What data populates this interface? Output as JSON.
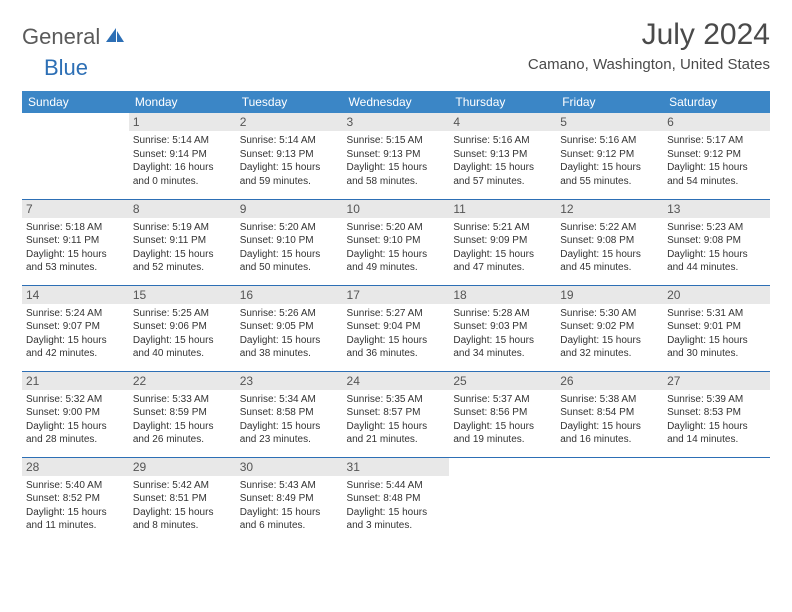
{
  "logo": {
    "part1": "General",
    "part2": "Blue"
  },
  "title": "July 2024",
  "location": "Camano, Washington, United States",
  "weekdays": [
    "Sunday",
    "Monday",
    "Tuesday",
    "Wednesday",
    "Thursday",
    "Friday",
    "Saturday"
  ],
  "colors": {
    "header_bg": "#3b86c6",
    "accent": "#2d6fb5",
    "daybar_bg": "#e8e8e8",
    "text": "#333333",
    "logo_gray": "#5a5a5a"
  },
  "weeks": [
    [
      null,
      {
        "n": "1",
        "sunrise": "Sunrise: 5:14 AM",
        "sunset": "Sunset: 9:14 PM",
        "day": "Daylight: 16 hours and 0 minutes."
      },
      {
        "n": "2",
        "sunrise": "Sunrise: 5:14 AM",
        "sunset": "Sunset: 9:13 PM",
        "day": "Daylight: 15 hours and 59 minutes."
      },
      {
        "n": "3",
        "sunrise": "Sunrise: 5:15 AM",
        "sunset": "Sunset: 9:13 PM",
        "day": "Daylight: 15 hours and 58 minutes."
      },
      {
        "n": "4",
        "sunrise": "Sunrise: 5:16 AM",
        "sunset": "Sunset: 9:13 PM",
        "day": "Daylight: 15 hours and 57 minutes."
      },
      {
        "n": "5",
        "sunrise": "Sunrise: 5:16 AM",
        "sunset": "Sunset: 9:12 PM",
        "day": "Daylight: 15 hours and 55 minutes."
      },
      {
        "n": "6",
        "sunrise": "Sunrise: 5:17 AM",
        "sunset": "Sunset: 9:12 PM",
        "day": "Daylight: 15 hours and 54 minutes."
      }
    ],
    [
      {
        "n": "7",
        "sunrise": "Sunrise: 5:18 AM",
        "sunset": "Sunset: 9:11 PM",
        "day": "Daylight: 15 hours and 53 minutes."
      },
      {
        "n": "8",
        "sunrise": "Sunrise: 5:19 AM",
        "sunset": "Sunset: 9:11 PM",
        "day": "Daylight: 15 hours and 52 minutes."
      },
      {
        "n": "9",
        "sunrise": "Sunrise: 5:20 AM",
        "sunset": "Sunset: 9:10 PM",
        "day": "Daylight: 15 hours and 50 minutes."
      },
      {
        "n": "10",
        "sunrise": "Sunrise: 5:20 AM",
        "sunset": "Sunset: 9:10 PM",
        "day": "Daylight: 15 hours and 49 minutes."
      },
      {
        "n": "11",
        "sunrise": "Sunrise: 5:21 AM",
        "sunset": "Sunset: 9:09 PM",
        "day": "Daylight: 15 hours and 47 minutes."
      },
      {
        "n": "12",
        "sunrise": "Sunrise: 5:22 AM",
        "sunset": "Sunset: 9:08 PM",
        "day": "Daylight: 15 hours and 45 minutes."
      },
      {
        "n": "13",
        "sunrise": "Sunrise: 5:23 AM",
        "sunset": "Sunset: 9:08 PM",
        "day": "Daylight: 15 hours and 44 minutes."
      }
    ],
    [
      {
        "n": "14",
        "sunrise": "Sunrise: 5:24 AM",
        "sunset": "Sunset: 9:07 PM",
        "day": "Daylight: 15 hours and 42 minutes."
      },
      {
        "n": "15",
        "sunrise": "Sunrise: 5:25 AM",
        "sunset": "Sunset: 9:06 PM",
        "day": "Daylight: 15 hours and 40 minutes."
      },
      {
        "n": "16",
        "sunrise": "Sunrise: 5:26 AM",
        "sunset": "Sunset: 9:05 PM",
        "day": "Daylight: 15 hours and 38 minutes."
      },
      {
        "n": "17",
        "sunrise": "Sunrise: 5:27 AM",
        "sunset": "Sunset: 9:04 PM",
        "day": "Daylight: 15 hours and 36 minutes."
      },
      {
        "n": "18",
        "sunrise": "Sunrise: 5:28 AM",
        "sunset": "Sunset: 9:03 PM",
        "day": "Daylight: 15 hours and 34 minutes."
      },
      {
        "n": "19",
        "sunrise": "Sunrise: 5:30 AM",
        "sunset": "Sunset: 9:02 PM",
        "day": "Daylight: 15 hours and 32 minutes."
      },
      {
        "n": "20",
        "sunrise": "Sunrise: 5:31 AM",
        "sunset": "Sunset: 9:01 PM",
        "day": "Daylight: 15 hours and 30 minutes."
      }
    ],
    [
      {
        "n": "21",
        "sunrise": "Sunrise: 5:32 AM",
        "sunset": "Sunset: 9:00 PM",
        "day": "Daylight: 15 hours and 28 minutes."
      },
      {
        "n": "22",
        "sunrise": "Sunrise: 5:33 AM",
        "sunset": "Sunset: 8:59 PM",
        "day": "Daylight: 15 hours and 26 minutes."
      },
      {
        "n": "23",
        "sunrise": "Sunrise: 5:34 AM",
        "sunset": "Sunset: 8:58 PM",
        "day": "Daylight: 15 hours and 23 minutes."
      },
      {
        "n": "24",
        "sunrise": "Sunrise: 5:35 AM",
        "sunset": "Sunset: 8:57 PM",
        "day": "Daylight: 15 hours and 21 minutes."
      },
      {
        "n": "25",
        "sunrise": "Sunrise: 5:37 AM",
        "sunset": "Sunset: 8:56 PM",
        "day": "Daylight: 15 hours and 19 minutes."
      },
      {
        "n": "26",
        "sunrise": "Sunrise: 5:38 AM",
        "sunset": "Sunset: 8:54 PM",
        "day": "Daylight: 15 hours and 16 minutes."
      },
      {
        "n": "27",
        "sunrise": "Sunrise: 5:39 AM",
        "sunset": "Sunset: 8:53 PM",
        "day": "Daylight: 15 hours and 14 minutes."
      }
    ],
    [
      {
        "n": "28",
        "sunrise": "Sunrise: 5:40 AM",
        "sunset": "Sunset: 8:52 PM",
        "day": "Daylight: 15 hours and 11 minutes."
      },
      {
        "n": "29",
        "sunrise": "Sunrise: 5:42 AM",
        "sunset": "Sunset: 8:51 PM",
        "day": "Daylight: 15 hours and 8 minutes."
      },
      {
        "n": "30",
        "sunrise": "Sunrise: 5:43 AM",
        "sunset": "Sunset: 8:49 PM",
        "day": "Daylight: 15 hours and 6 minutes."
      },
      {
        "n": "31",
        "sunrise": "Sunrise: 5:44 AM",
        "sunset": "Sunset: 8:48 PM",
        "day": "Daylight: 15 hours and 3 minutes."
      },
      null,
      null,
      null
    ]
  ]
}
